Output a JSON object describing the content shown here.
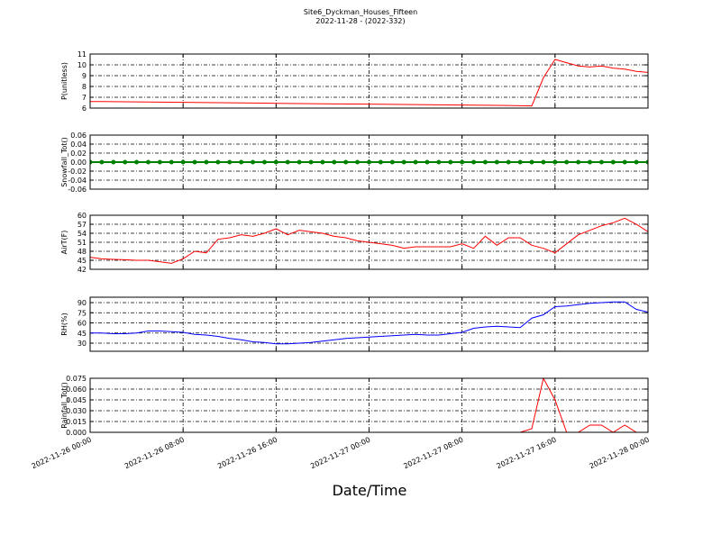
{
  "chart_data": [
    {
      "type": "line",
      "title": "Site6_Dyckman_Houses_Fifteen",
      "subtitle": "2022-11-28 - (2022-332)",
      "ylabel": "P(unitless)",
      "color": "#ff0000",
      "x": [
        "2022-11-26 00:00",
        "2022-11-26 01:00",
        "2022-11-26 02:00",
        "2022-11-26 03:00",
        "2022-11-26 04:00",
        "2022-11-26 05:00",
        "2022-11-26 06:00",
        "2022-11-26 07:00",
        "2022-11-26 08:00",
        "2022-11-26 09:00",
        "2022-11-26 10:00",
        "2022-11-26 11:00",
        "2022-11-26 12:00",
        "2022-11-26 13:00",
        "2022-11-26 14:00",
        "2022-11-26 15:00",
        "2022-11-26 16:00",
        "2022-11-26 17:00",
        "2022-11-26 18:00",
        "2022-11-26 19:00",
        "2022-11-26 20:00",
        "2022-11-26 21:00",
        "2022-11-26 22:00",
        "2022-11-26 23:00",
        "2022-11-27 00:00",
        "2022-11-27 01:00",
        "2022-11-27 02:00",
        "2022-11-27 03:00",
        "2022-11-27 04:00",
        "2022-11-27 05:00",
        "2022-11-27 06:00",
        "2022-11-27 07:00",
        "2022-11-27 08:00",
        "2022-11-27 09:00",
        "2022-11-27 10:00",
        "2022-11-27 11:00",
        "2022-11-27 12:00",
        "2022-11-27 13:00",
        "2022-11-27 14:00",
        "2022-11-27 15:00",
        "2022-11-27 16:00",
        "2022-11-27 17:00",
        "2022-11-27 18:00",
        "2022-11-27 19:00",
        "2022-11-27 20:00",
        "2022-11-27 21:00",
        "2022-11-27 22:00",
        "2022-11-27 23:00",
        "2022-11-28 00:00"
      ],
      "values": [
        6.6,
        6.6,
        6.59,
        6.58,
        6.57,
        6.56,
        6.55,
        6.54,
        6.53,
        6.52,
        6.51,
        6.5,
        6.49,
        6.48,
        6.47,
        6.46,
        6.44,
        6.43,
        6.42,
        6.41,
        6.4,
        6.39,
        6.38,
        6.37,
        6.36,
        6.35,
        6.34,
        6.33,
        6.32,
        6.31,
        6.3,
        6.29,
        6.28,
        6.27,
        6.26,
        6.25,
        6.24,
        6.22,
        6.2,
        8.8,
        10.5,
        10.2,
        9.9,
        9.8,
        9.9,
        9.7,
        9.6,
        9.4,
        9.3
      ],
      "xlim": [
        "2022-11-26 00:00",
        "2022-11-28 00:00"
      ],
      "xticks": [
        "2022-11-26 00:00",
        "2022-11-26 08:00",
        "2022-11-26 16:00",
        "2022-11-27 00:00",
        "2022-11-27 08:00",
        "2022-11-27 16:00",
        "2022-11-28 00:00"
      ],
      "ylim": [
        6,
        11
      ],
      "yticks": [
        6,
        7,
        8,
        9,
        10,
        11
      ],
      "grid": true
    },
    {
      "type": "line",
      "ylabel": "Snowfall_Tot()",
      "color": "#008000",
      "markers": true,
      "x": [
        "2022-11-26 00:00",
        "2022-11-26 01:00",
        "2022-11-26 02:00",
        "2022-11-26 03:00",
        "2022-11-26 04:00",
        "2022-11-26 05:00",
        "2022-11-26 06:00",
        "2022-11-26 07:00",
        "2022-11-26 08:00",
        "2022-11-26 09:00",
        "2022-11-26 10:00",
        "2022-11-26 11:00",
        "2022-11-26 12:00",
        "2022-11-26 13:00",
        "2022-11-26 14:00",
        "2022-11-26 15:00",
        "2022-11-26 16:00",
        "2022-11-26 17:00",
        "2022-11-26 18:00",
        "2022-11-26 19:00",
        "2022-11-26 20:00",
        "2022-11-26 21:00",
        "2022-11-26 22:00",
        "2022-11-26 23:00",
        "2022-11-27 00:00",
        "2022-11-27 01:00",
        "2022-11-27 02:00",
        "2022-11-27 03:00",
        "2022-11-27 04:00",
        "2022-11-27 05:00",
        "2022-11-27 06:00",
        "2022-11-27 07:00",
        "2022-11-27 08:00",
        "2022-11-27 09:00",
        "2022-11-27 10:00",
        "2022-11-27 11:00",
        "2022-11-27 12:00",
        "2022-11-27 13:00",
        "2022-11-27 14:00",
        "2022-11-27 15:00",
        "2022-11-27 16:00",
        "2022-11-27 17:00",
        "2022-11-27 18:00",
        "2022-11-27 19:00",
        "2022-11-27 20:00",
        "2022-11-27 21:00",
        "2022-11-27 22:00",
        "2022-11-27 23:00",
        "2022-11-28 00:00"
      ],
      "values": [
        0,
        0,
        0,
        0,
        0,
        0,
        0,
        0,
        0,
        0,
        0,
        0,
        0,
        0,
        0,
        0,
        0,
        0,
        0,
        0,
        0,
        0,
        0,
        0,
        0,
        0,
        0,
        0,
        0,
        0,
        0,
        0,
        0,
        0,
        0,
        0,
        0,
        0,
        0,
        0,
        0,
        0,
        0,
        0,
        0,
        0,
        0,
        0,
        0
      ],
      "xlim": [
        "2022-11-26 00:00",
        "2022-11-28 00:00"
      ],
      "xticks": [
        "2022-11-26 00:00",
        "2022-11-26 08:00",
        "2022-11-26 16:00",
        "2022-11-27 00:00",
        "2022-11-27 08:00",
        "2022-11-27 16:00",
        "2022-11-28 00:00"
      ],
      "ylim": [
        -0.06,
        0.06
      ],
      "yticks": [
        -0.06,
        -0.04,
        -0.02,
        {
          "value": 0,
          "label": "0.00"
        },
        0.02,
        0.04,
        0.06
      ],
      "grid": true
    },
    {
      "type": "line",
      "ylabel": "AirT(F)",
      "color": "#ff0000",
      "x": [
        "2022-11-26 00:00",
        "2022-11-26 01:00",
        "2022-11-26 02:00",
        "2022-11-26 03:00",
        "2022-11-26 04:00",
        "2022-11-26 05:00",
        "2022-11-26 06:00",
        "2022-11-26 07:00",
        "2022-11-26 08:00",
        "2022-11-26 09:00",
        "2022-11-26 10:00",
        "2022-11-26 11:00",
        "2022-11-26 12:00",
        "2022-11-26 13:00",
        "2022-11-26 14:00",
        "2022-11-26 15:00",
        "2022-11-26 16:00",
        "2022-11-26 17:00",
        "2022-11-26 18:00",
        "2022-11-26 19:00",
        "2022-11-26 20:00",
        "2022-11-26 21:00",
        "2022-11-26 22:00",
        "2022-11-26 23:00",
        "2022-11-27 00:00",
        "2022-11-27 01:00",
        "2022-11-27 02:00",
        "2022-11-27 03:00",
        "2022-11-27 04:00",
        "2022-11-27 05:00",
        "2022-11-27 06:00",
        "2022-11-27 07:00",
        "2022-11-27 08:00",
        "2022-11-27 09:00",
        "2022-11-27 10:00",
        "2022-11-27 11:00",
        "2022-11-27 12:00",
        "2022-11-27 13:00",
        "2022-11-27 14:00",
        "2022-11-27 15:00",
        "2022-11-27 16:00",
        "2022-11-27 17:00",
        "2022-11-27 18:00",
        "2022-11-27 19:00",
        "2022-11-27 20:00",
        "2022-11-27 21:00",
        "2022-11-27 22:00",
        "2022-11-27 23:00",
        "2022-11-28 00:00"
      ],
      "values": [
        46,
        45.5,
        45.3,
        45.2,
        45,
        45,
        44.5,
        44,
        45.5,
        48,
        47.5,
        52,
        52.5,
        53.5,
        53,
        54,
        55.5,
        53.5,
        55,
        54.5,
        54,
        53,
        52.5,
        51.5,
        51,
        50.5,
        50,
        49,
        49.5,
        49.5,
        49.5,
        49.5,
        50.5,
        49,
        53,
        50,
        52.5,
        52.5,
        50,
        49,
        47.5,
        50.5,
        53.5,
        55,
        56.5,
        57.5,
        59,
        57,
        54.5
      ],
      "xlim": [
        "2022-11-26 00:00",
        "2022-11-28 00:00"
      ],
      "xticks": [
        "2022-11-26 00:00",
        "2022-11-26 08:00",
        "2022-11-26 16:00",
        "2022-11-27 00:00",
        "2022-11-27 08:00",
        "2022-11-27 16:00",
        "2022-11-28 00:00"
      ],
      "ylim": [
        42,
        60
      ],
      "yticks": [
        42,
        45,
        48,
        51,
        54,
        57,
        60
      ],
      "grid": true
    },
    {
      "type": "line",
      "ylabel": "RH(%)",
      "color": "#0000ff",
      "x": [
        "2022-11-26 00:00",
        "2022-11-26 01:00",
        "2022-11-26 02:00",
        "2022-11-26 03:00",
        "2022-11-26 04:00",
        "2022-11-26 05:00",
        "2022-11-26 06:00",
        "2022-11-26 07:00",
        "2022-11-26 08:00",
        "2022-11-26 09:00",
        "2022-11-26 10:00",
        "2022-11-26 11:00",
        "2022-11-26 12:00",
        "2022-11-26 13:00",
        "2022-11-26 14:00",
        "2022-11-26 15:00",
        "2022-11-26 16:00",
        "2022-11-26 17:00",
        "2022-11-26 18:00",
        "2022-11-26 19:00",
        "2022-11-26 20:00",
        "2022-11-26 21:00",
        "2022-11-26 22:00",
        "2022-11-26 23:00",
        "2022-11-27 00:00",
        "2022-11-27 01:00",
        "2022-11-27 02:00",
        "2022-11-27 03:00",
        "2022-11-27 04:00",
        "2022-11-27 05:00",
        "2022-11-27 06:00",
        "2022-11-27 07:00",
        "2022-11-27 08:00",
        "2022-11-27 09:00",
        "2022-11-27 10:00",
        "2022-11-27 11:00",
        "2022-11-27 12:00",
        "2022-11-27 13:00",
        "2022-11-27 14:00",
        "2022-11-27 15:00",
        "2022-11-27 16:00",
        "2022-11-27 17:00",
        "2022-11-27 18:00",
        "2022-11-27 19:00",
        "2022-11-27 20:00",
        "2022-11-27 21:00",
        "2022-11-27 22:00",
        "2022-11-27 23:00",
        "2022-11-28 00:00"
      ],
      "values": [
        45,
        45,
        44,
        44,
        45,
        48,
        48,
        47,
        46,
        43,
        42,
        40,
        37,
        35,
        32,
        31,
        29,
        29,
        30,
        31,
        33,
        35,
        37,
        38,
        39,
        40,
        41,
        42,
        43,
        42,
        42,
        44,
        46,
        52,
        54,
        55,
        54,
        53,
        67,
        72,
        84,
        85,
        87,
        89,
        90,
        91,
        91,
        80,
        76
      ],
      "xlim": [
        "2022-11-26 00:00",
        "2022-11-28 00:00"
      ],
      "xticks": [
        "2022-11-26 00:00",
        "2022-11-26 08:00",
        "2022-11-26 16:00",
        "2022-11-27 00:00",
        "2022-11-27 08:00",
        "2022-11-27 16:00",
        "2022-11-28 00:00"
      ],
      "ylim": [
        18,
        98
      ],
      "yticks": [
        30,
        45,
        60,
        75,
        90
      ],
      "grid": true
    },
    {
      "type": "line",
      "ylabel": "Rainfall_Tot()",
      "xlabel": "Date/Time",
      "color": "#ff0000",
      "x": [
        "2022-11-26 00:00",
        "2022-11-26 01:00",
        "2022-11-26 02:00",
        "2022-11-26 03:00",
        "2022-11-26 04:00",
        "2022-11-26 05:00",
        "2022-11-26 06:00",
        "2022-11-26 07:00",
        "2022-11-26 08:00",
        "2022-11-26 09:00",
        "2022-11-26 10:00",
        "2022-11-26 11:00",
        "2022-11-26 12:00",
        "2022-11-26 13:00",
        "2022-11-26 14:00",
        "2022-11-26 15:00",
        "2022-11-26 16:00",
        "2022-11-26 17:00",
        "2022-11-26 18:00",
        "2022-11-26 19:00",
        "2022-11-26 20:00",
        "2022-11-26 21:00",
        "2022-11-26 22:00",
        "2022-11-26 23:00",
        "2022-11-27 00:00",
        "2022-11-27 01:00",
        "2022-11-27 02:00",
        "2022-11-27 03:00",
        "2022-11-27 04:00",
        "2022-11-27 05:00",
        "2022-11-27 06:00",
        "2022-11-27 07:00",
        "2022-11-27 08:00",
        "2022-11-27 09:00",
        "2022-11-27 10:00",
        "2022-11-27 11:00",
        "2022-11-27 12:00",
        "2022-11-27 13:00",
        "2022-11-27 14:00",
        "2022-11-27 15:00",
        "2022-11-27 16:00",
        "2022-11-27 17:00",
        "2022-11-27 18:00",
        "2022-11-27 19:00",
        "2022-11-27 20:00",
        "2022-11-27 21:00",
        "2022-11-27 22:00",
        "2022-11-27 23:00",
        "2022-11-28 00:00"
      ],
      "values": [
        0,
        0,
        0,
        0,
        0,
        0,
        0,
        0,
        0,
        0,
        0,
        0,
        0,
        0,
        0,
        0,
        0,
        0,
        0,
        0,
        0,
        0,
        0,
        0,
        0,
        0,
        0,
        0,
        0,
        0,
        0,
        0,
        0,
        0,
        0,
        0,
        0,
        0,
        0.005,
        0.075,
        0.045,
        0,
        0,
        0.01,
        0.01,
        0,
        0.01,
        0,
        0
      ],
      "xlim": [
        "2022-11-26 00:00",
        "2022-11-28 00:00"
      ],
      "xticks": [
        "2022-11-26 00:00",
        "2022-11-26 08:00",
        "2022-11-26 16:00",
        "2022-11-27 00:00",
        "2022-11-27 08:00",
        "2022-11-27 16:00",
        "2022-11-28 00:00"
      ],
      "ylim": [
        0,
        0.075
      ],
      "yticks": [
        {
          "value": 0,
          "label": "0.000"
        },
        {
          "value": 0.015,
          "label": "0.015"
        },
        {
          "value": 0.03,
          "label": "0.030"
        },
        {
          "value": 0.045,
          "label": "0.045"
        },
        {
          "value": 0.06,
          "label": "0.060"
        },
        {
          "value": 0.075,
          "label": "0.075"
        }
      ],
      "grid": true
    }
  ]
}
